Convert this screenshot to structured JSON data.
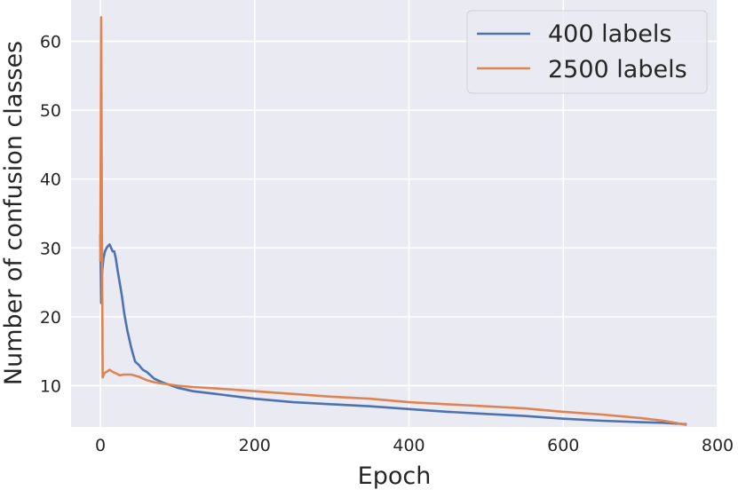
{
  "chart_data": {
    "type": "line",
    "title": "",
    "xlabel": "Epoch",
    "ylabel": "Number of confusion classes",
    "xlim": [
      -38,
      800
    ],
    "ylim": [
      4,
      66
    ],
    "xticks": [
      0,
      200,
      400,
      600,
      800
    ],
    "yticks": [
      10,
      20,
      30,
      40,
      50,
      60
    ],
    "grid": true,
    "legend_position": "top-right",
    "colors": {
      "background": "#eaeaf2",
      "grid": "#ffffff"
    },
    "series": [
      {
        "name": "400 labels",
        "color": "#4c72b0",
        "x": [
          0,
          1,
          2,
          4,
          6,
          8,
          10,
          12,
          14,
          16,
          18,
          20,
          22,
          25,
          28,
          31,
          35,
          40,
          45,
          50,
          55,
          60,
          70,
          80,
          100,
          120,
          150,
          200,
          250,
          300,
          350,
          400,
          450,
          500,
          550,
          600,
          650,
          700,
          730,
          760
        ],
        "y": [
          32,
          22,
          26,
          28.5,
          29.5,
          30,
          30.3,
          30.5,
          30,
          29.5,
          29.5,
          28.5,
          27,
          25,
          23,
          20.5,
          18,
          15.5,
          13.5,
          13,
          12.3,
          12,
          11,
          10.5,
          9.7,
          9.2,
          8.8,
          8.1,
          7.6,
          7.3,
          7,
          6.6,
          6.2,
          5.9,
          5.6,
          5.2,
          4.9,
          4.7,
          4.6,
          4.4
        ]
      },
      {
        "name": "2500 labels",
        "color": "#dd8452",
        "x": [
          0,
          1,
          2,
          3,
          5,
          8,
          12,
          16,
          20,
          25,
          30,
          40,
          50,
          60,
          70,
          80,
          100,
          120,
          150,
          200,
          250,
          300,
          350,
          400,
          450,
          500,
          550,
          600,
          650,
          700,
          730,
          760
        ],
        "y": [
          28,
          63.5,
          35,
          11.2,
          11.8,
          12,
          12.3,
          12,
          11.8,
          11.5,
          11.6,
          11.6,
          11.3,
          10.8,
          10.5,
          10.3,
          10,
          9.8,
          9.6,
          9.2,
          8.8,
          8.4,
          8.1,
          7.6,
          7.3,
          7,
          6.7,
          6.2,
          5.8,
          5.3,
          4.9,
          4.3
        ]
      }
    ]
  }
}
